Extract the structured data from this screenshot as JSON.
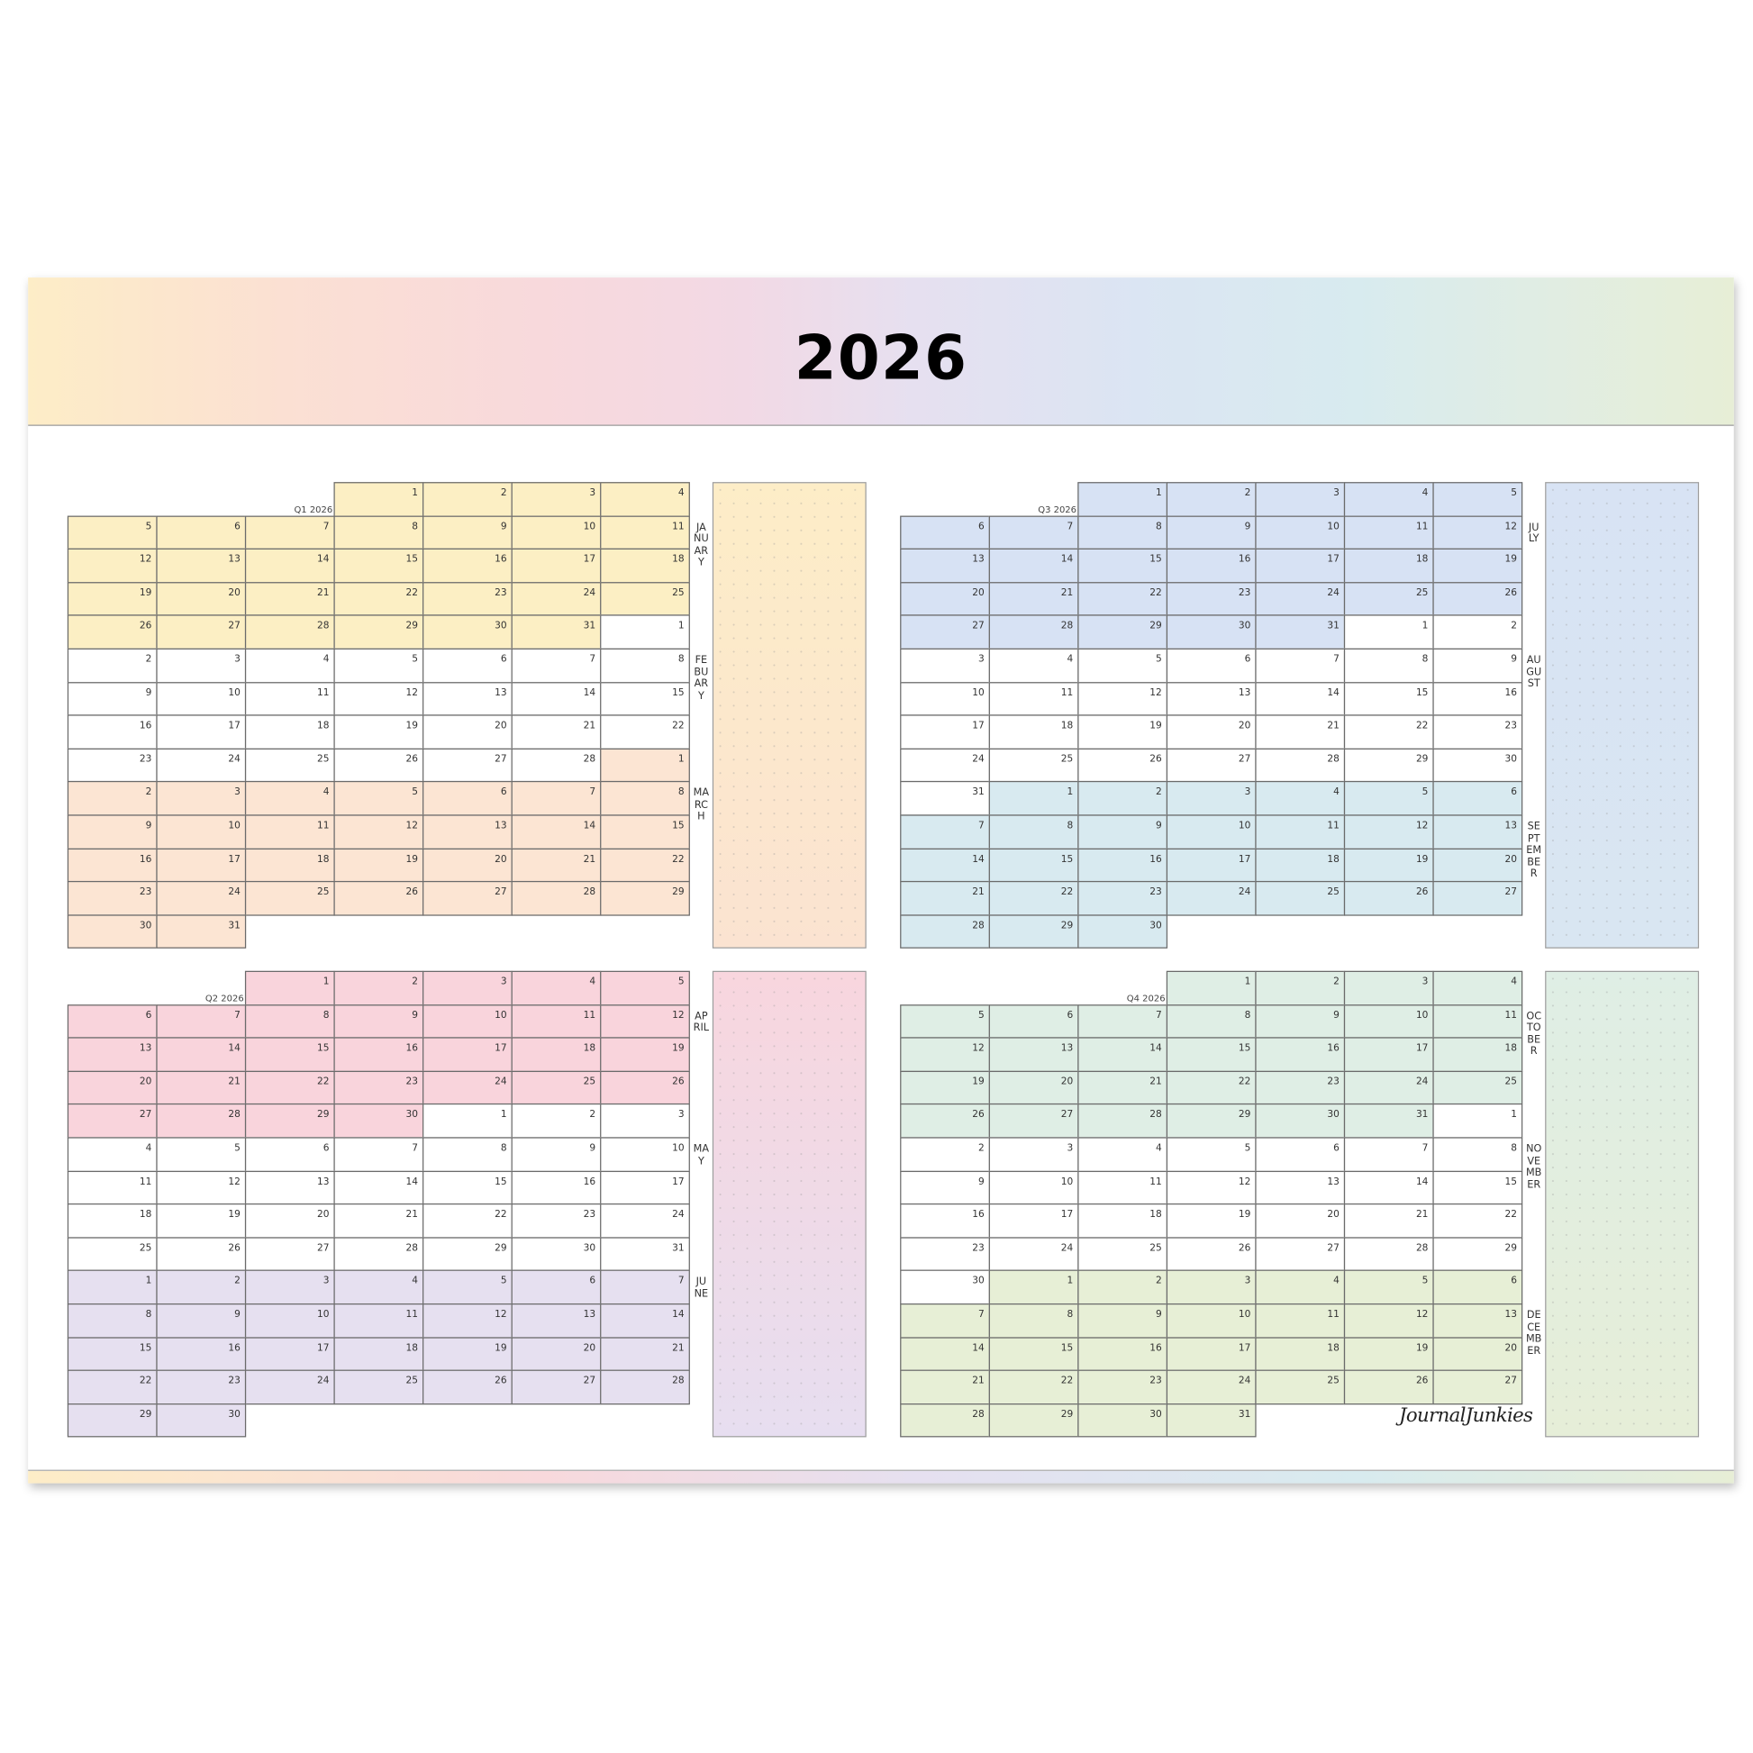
{
  "title": "2026",
  "logo": "JournalJunkies",
  "quarters": [
    {
      "label": "Q1 2026",
      "notes_colors": [
        "#fdedc7",
        "#fbe3d1"
      ],
      "months": [
        {
          "name": "JANUARY",
          "color": "#fcefc4"
        },
        {
          "name": "FEBUARY",
          "color": "#ffffff"
        },
        {
          "name": "MARCH",
          "color": "#fce5d3"
        }
      ],
      "weeks": [
        [
          null,
          null,
          null,
          1,
          2,
          3,
          4
        ],
        [
          5,
          6,
          7,
          8,
          9,
          10,
          11
        ],
        [
          12,
          13,
          14,
          15,
          16,
          17,
          18
        ],
        [
          19,
          20,
          21,
          22,
          23,
          24,
          25
        ],
        [
          26,
          27,
          28,
          29,
          30,
          31,
          1
        ],
        [
          2,
          3,
          4,
          5,
          6,
          7,
          8
        ],
        [
          9,
          10,
          11,
          12,
          13,
          14,
          15
        ],
        [
          16,
          17,
          18,
          19,
          20,
          21,
          22
        ],
        [
          23,
          24,
          25,
          26,
          27,
          28,
          1
        ],
        [
          2,
          3,
          4,
          5,
          6,
          7,
          8
        ],
        [
          9,
          10,
          11,
          12,
          13,
          14,
          15
        ],
        [
          16,
          17,
          18,
          19,
          20,
          21,
          22
        ],
        [
          23,
          24,
          25,
          26,
          27,
          28,
          29
        ],
        [
          30,
          31,
          null,
          null,
          null,
          null,
          null
        ]
      ]
    },
    {
      "label": "Q2 2026",
      "notes_colors": [
        "#f8d6de",
        "#e7def0"
      ],
      "months": [
        {
          "name": "APRIL",
          "color": "#f9d4dc"
        },
        {
          "name": "MAY",
          "color": "#ffffff"
        },
        {
          "name": "JUNE",
          "color": "#e6e0f0"
        }
      ],
      "weeks": [
        [
          null,
          null,
          1,
          2,
          3,
          4,
          5
        ],
        [
          6,
          7,
          8,
          9,
          10,
          11,
          12
        ],
        [
          13,
          14,
          15,
          16,
          17,
          18,
          19
        ],
        [
          20,
          21,
          22,
          23,
          24,
          25,
          26
        ],
        [
          27,
          28,
          29,
          30,
          1,
          2,
          3
        ],
        [
          4,
          5,
          6,
          7,
          8,
          9,
          10
        ],
        [
          11,
          12,
          13,
          14,
          15,
          16,
          17
        ],
        [
          18,
          19,
          20,
          21,
          22,
          23,
          24
        ],
        [
          25,
          26,
          27,
          28,
          29,
          30,
          31
        ],
        [
          1,
          2,
          3,
          4,
          5,
          6,
          7
        ],
        [
          8,
          9,
          10,
          11,
          12,
          13,
          14
        ],
        [
          15,
          16,
          17,
          18,
          19,
          20,
          21
        ],
        [
          22,
          23,
          24,
          25,
          26,
          27,
          28
        ],
        [
          29,
          30,
          null,
          null,
          null,
          null,
          null
        ]
      ]
    },
    {
      "label": "Q3 2026",
      "notes_colors": [
        "#d8e3f4",
        "#d9e6f2"
      ],
      "months": [
        {
          "name": "JULY",
          "color": "#d7e2f4"
        },
        {
          "name": "AUGUST",
          "color": "#ffffff"
        },
        {
          "name": "SEPTEMBER",
          "color": "#d8eaf0"
        }
      ],
      "weeks": [
        [
          null,
          null,
          1,
          2,
          3,
          4,
          5
        ],
        [
          6,
          7,
          8,
          9,
          10,
          11,
          12
        ],
        [
          13,
          14,
          15,
          16,
          17,
          18,
          19
        ],
        [
          20,
          21,
          22,
          23,
          24,
          25,
          26
        ],
        [
          27,
          28,
          29,
          30,
          31,
          1,
          2
        ],
        [
          3,
          4,
          5,
          6,
          7,
          8,
          9
        ],
        [
          10,
          11,
          12,
          13,
          14,
          15,
          16
        ],
        [
          17,
          18,
          19,
          20,
          21,
          22,
          23
        ],
        [
          24,
          25,
          26,
          27,
          28,
          29,
          30
        ],
        [
          31,
          1,
          2,
          3,
          4,
          5,
          6
        ],
        [
          7,
          8,
          9,
          10,
          11,
          12,
          13
        ],
        [
          14,
          15,
          16,
          17,
          18,
          19,
          20
        ],
        [
          21,
          22,
          23,
          24,
          25,
          26,
          27
        ],
        [
          28,
          29,
          30,
          null,
          null,
          null,
          null
        ]
      ]
    },
    {
      "label": "Q4 2026",
      "notes_colors": [
        "#dfeee5",
        "#e6eed8"
      ],
      "months": [
        {
          "name": "OCTOBER",
          "color": "#dfeee5"
        },
        {
          "name": "NOVEMBER",
          "color": "#ffffff"
        },
        {
          "name": "DECEMBER",
          "color": "#e7efd6"
        }
      ],
      "weeks": [
        [
          null,
          null,
          null,
          1,
          2,
          3,
          4
        ],
        [
          5,
          6,
          7,
          8,
          9,
          10,
          11
        ],
        [
          12,
          13,
          14,
          15,
          16,
          17,
          18
        ],
        [
          19,
          20,
          21,
          22,
          23,
          24,
          25
        ],
        [
          26,
          27,
          28,
          29,
          30,
          31,
          1
        ],
        [
          2,
          3,
          4,
          5,
          6,
          7,
          8
        ],
        [
          9,
          10,
          11,
          12,
          13,
          14,
          15
        ],
        [
          16,
          17,
          18,
          19,
          20,
          21,
          22
        ],
        [
          23,
          24,
          25,
          26,
          27,
          28,
          29
        ],
        [
          30,
          1,
          2,
          3,
          4,
          5,
          6
        ],
        [
          7,
          8,
          9,
          10,
          11,
          12,
          13
        ],
        [
          14,
          15,
          16,
          17,
          18,
          19,
          20
        ],
        [
          21,
          22,
          23,
          24,
          25,
          26,
          27
        ],
        [
          28,
          29,
          30,
          31,
          null,
          null,
          null
        ]
      ]
    }
  ]
}
